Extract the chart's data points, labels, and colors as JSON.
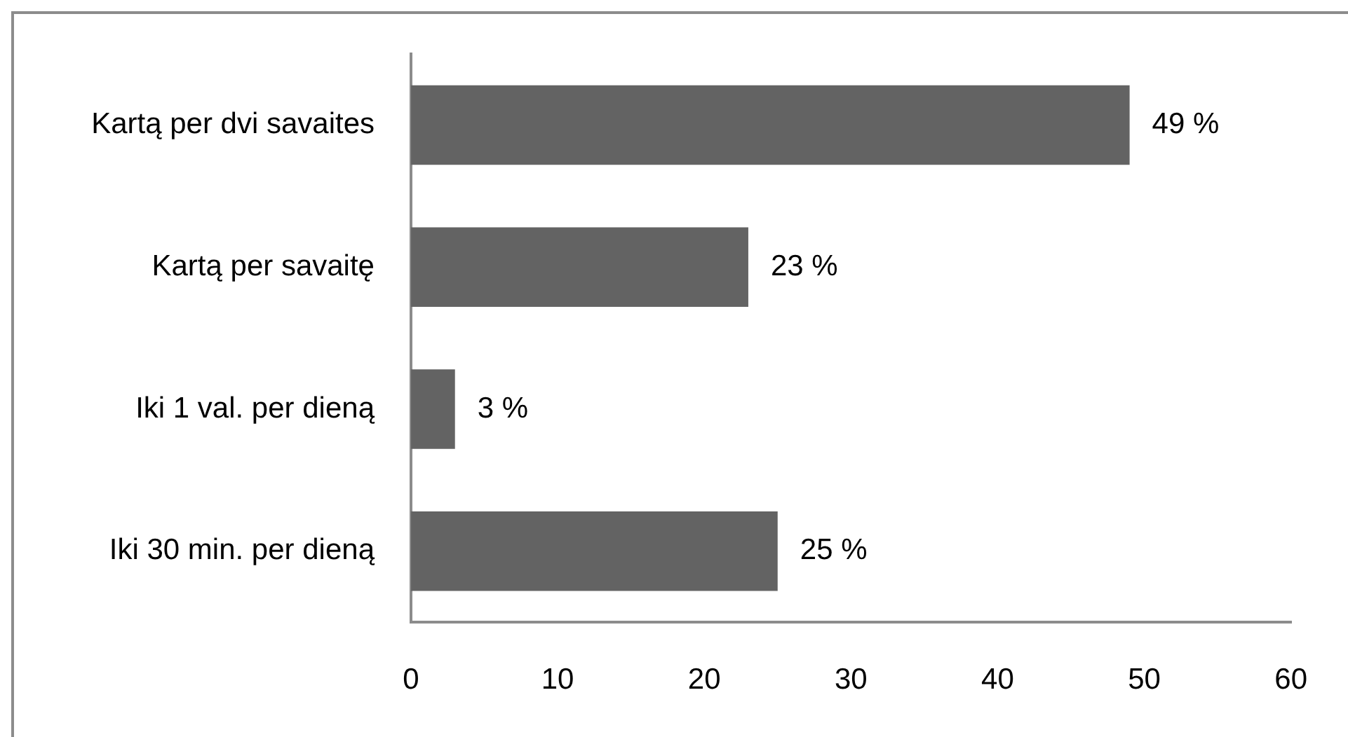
{
  "chart_data": {
    "type": "bar",
    "orientation": "horizontal",
    "categories": [
      "Kartą per dvi savaites",
      "Kartą per savaitę",
      "Iki 1 val. per dieną",
      "Iki 30 min. per dieną"
    ],
    "values": [
      49,
      23,
      3,
      25
    ],
    "value_labels": [
      "49 %",
      "23 %",
      "3 %",
      "25 %"
    ],
    "color": "#636363",
    "xlim": [
      0,
      60
    ],
    "xticks": [
      0,
      10,
      20,
      30,
      40,
      50,
      60
    ],
    "grid": false,
    "legend": false
  }
}
